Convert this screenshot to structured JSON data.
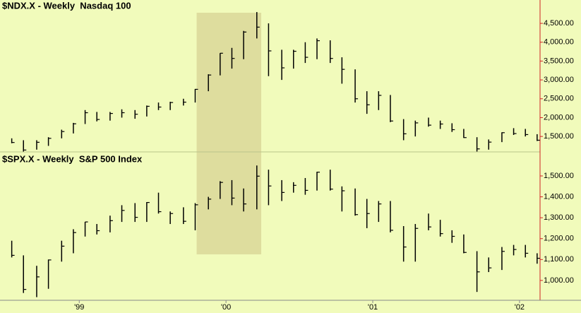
{
  "chart_data": [
    {
      "type": "hlc",
      "title": "$NDX.X - Weekly  Nasdaq 100",
      "color": "#000000",
      "highlight": [
        1999.8,
        2000.24
      ],
      "highlight_color": "#dedd9e",
      "xlim": [
        1998.46,
        2002.14
      ],
      "ylim": [
        1090,
        5120
      ],
      "yticks": [
        {
          "value": 1500,
          "label": "1,500.00"
        },
        {
          "value": 2000,
          "label": "2,000.00"
        },
        {
          "value": 2500,
          "label": "2,500.00"
        },
        {
          "value": 3000,
          "label": "3,000.00"
        },
        {
          "value": 3500,
          "label": "3,500.00"
        },
        {
          "value": 4000,
          "label": "4,000.00"
        },
        {
          "value": 4500,
          "label": "4,500.00"
        }
      ],
      "x": [
        1998.54,
        1998.62,
        1998.71,
        1998.79,
        1998.88,
        1998.96,
        1999.04,
        1999.12,
        1999.21,
        1999.29,
        1999.38,
        1999.46,
        1999.54,
        1999.62,
        1999.71,
        1999.79,
        1999.88,
        1999.96,
        2000.04,
        2000.12,
        2000.21,
        2000.29,
        2000.38,
        2000.46,
        2000.54,
        2000.62,
        2000.71,
        2000.79,
        2000.88,
        2000.96,
        2001.04,
        2001.12,
        2001.21,
        2001.29,
        2001.38,
        2001.46,
        2001.54,
        2001.62,
        2001.71,
        2001.79,
        2001.88,
        2001.96,
        2002.04,
        2002.12
      ],
      "high": [
        1450,
        1400,
        1400,
        1480,
        1680,
        1860,
        2200,
        2150,
        2150,
        2220,
        2200,
        2320,
        2400,
        2420,
        2500,
        2760,
        3150,
        3710,
        3850,
        4300,
        4800,
        4500,
        3800,
        3800,
        4000,
        4100,
        4050,
        3600,
        3280,
        2700,
        2700,
        2600,
        1960,
        1920,
        2000,
        1920,
        1850,
        1700,
        1480,
        1420,
        1610,
        1720,
        1700,
        1560
      ],
      "low": [
        1320,
        1100,
        1150,
        1250,
        1450,
        1580,
        1830,
        1900,
        1920,
        2000,
        1970,
        2030,
        2200,
        2200,
        2320,
        2400,
        2700,
        3120,
        3300,
        3550,
        4100,
        3100,
        3000,
        3300,
        3450,
        3550,
        3450,
        2900,
        2400,
        2100,
        2200,
        1880,
        1400,
        1500,
        1760,
        1700,
        1620,
        1460,
        1100,
        1150,
        1350,
        1540,
        1500,
        1380
      ],
      "close": [
        1340,
        1140,
        1345,
        1450,
        1630,
        1836,
        2130,
        1950,
        2110,
        2130,
        2090,
        2300,
        2280,
        2400,
        2410,
        2750,
        3130,
        3708,
        3570,
        4270,
        4400,
        3770,
        3320,
        3760,
        3600,
        4040,
        3570,
        3280,
        2500,
        2340,
        2590,
        1910,
        1570,
        1860,
        1800,
        1830,
        1680,
        1470,
        1170,
        1350,
        1600,
        1577,
        1550,
        1400
      ]
    },
    {
      "type": "hlc",
      "title": "$SPX.X - Weekly  S&P 500 Index",
      "color": "#000000",
      "xlim": [
        1998.46,
        2002.14
      ],
      "ylim": [
        905,
        1615
      ],
      "xticks": [
        {
          "value": 1999,
          "label": "'99"
        },
        {
          "value": 2000,
          "label": "'00"
        },
        {
          "value": 2001,
          "label": "'01"
        },
        {
          "value": 2002,
          "label": "'02"
        }
      ],
      "yticks": [
        {
          "value": 1000,
          "label": "1,000.00"
        },
        {
          "value": 1100,
          "label": "1,100.00"
        },
        {
          "value": 1200,
          "label": "1,200.00"
        },
        {
          "value": 1300,
          "label": "1,300.00"
        },
        {
          "value": 1400,
          "label": "1,400.00"
        },
        {
          "value": 1500,
          "label": "1,500.00"
        }
      ],
      "x": [
        1998.54,
        1998.62,
        1998.71,
        1998.79,
        1998.88,
        1998.96,
        1999.04,
        1999.12,
        1999.21,
        1999.29,
        1999.38,
        1999.46,
        1999.54,
        1999.62,
        1999.71,
        1999.79,
        1999.88,
        1999.96,
        2000.04,
        2000.12,
        2000.21,
        2000.29,
        2000.38,
        2000.46,
        2000.54,
        2000.62,
        2000.71,
        2000.79,
        2000.88,
        2000.96,
        2001.04,
        2001.12,
        2001.21,
        2001.29,
        2001.38,
        2001.46,
        2001.54,
        2001.62,
        2001.71,
        2001.79,
        2001.88,
        2001.96,
        2002.04,
        2002.12
      ],
      "high": [
        1190,
        1120,
        1070,
        1100,
        1190,
        1245,
        1280,
        1270,
        1310,
        1360,
        1370,
        1375,
        1420,
        1330,
        1350,
        1370,
        1400,
        1475,
        1480,
        1440,
        1550,
        1530,
        1480,
        1470,
        1490,
        1520,
        1530,
        1450,
        1440,
        1390,
        1380,
        1380,
        1260,
        1270,
        1320,
        1290,
        1240,
        1220,
        1140,
        1110,
        1160,
        1170,
        1170,
        1130
      ],
      "low": [
        1110,
        940,
        920,
        960,
        1090,
        1130,
        1210,
        1220,
        1230,
        1280,
        1280,
        1280,
        1320,
        1270,
        1270,
        1240,
        1340,
        1390,
        1360,
        1330,
        1340,
        1360,
        1380,
        1420,
        1410,
        1430,
        1430,
        1330,
        1310,
        1250,
        1280,
        1230,
        1090,
        1090,
        1240,
        1210,
        1180,
        1130,
        945,
        1040,
        1050,
        1120,
        1110,
        1080
      ],
      "close": [
        1120,
        957,
        1017,
        1098,
        1164,
        1229,
        1280,
        1238,
        1286,
        1335,
        1302,
        1373,
        1329,
        1320,
        1283,
        1362,
        1389,
        1469,
        1394,
        1366,
        1499,
        1452,
        1421,
        1455,
        1431,
        1518,
        1437,
        1429,
        1315,
        1320,
        1366,
        1240,
        1160,
        1249,
        1256,
        1224,
        1211,
        1134,
        1041,
        1060,
        1139,
        1148,
        1130,
        1106
      ]
    }
  ]
}
